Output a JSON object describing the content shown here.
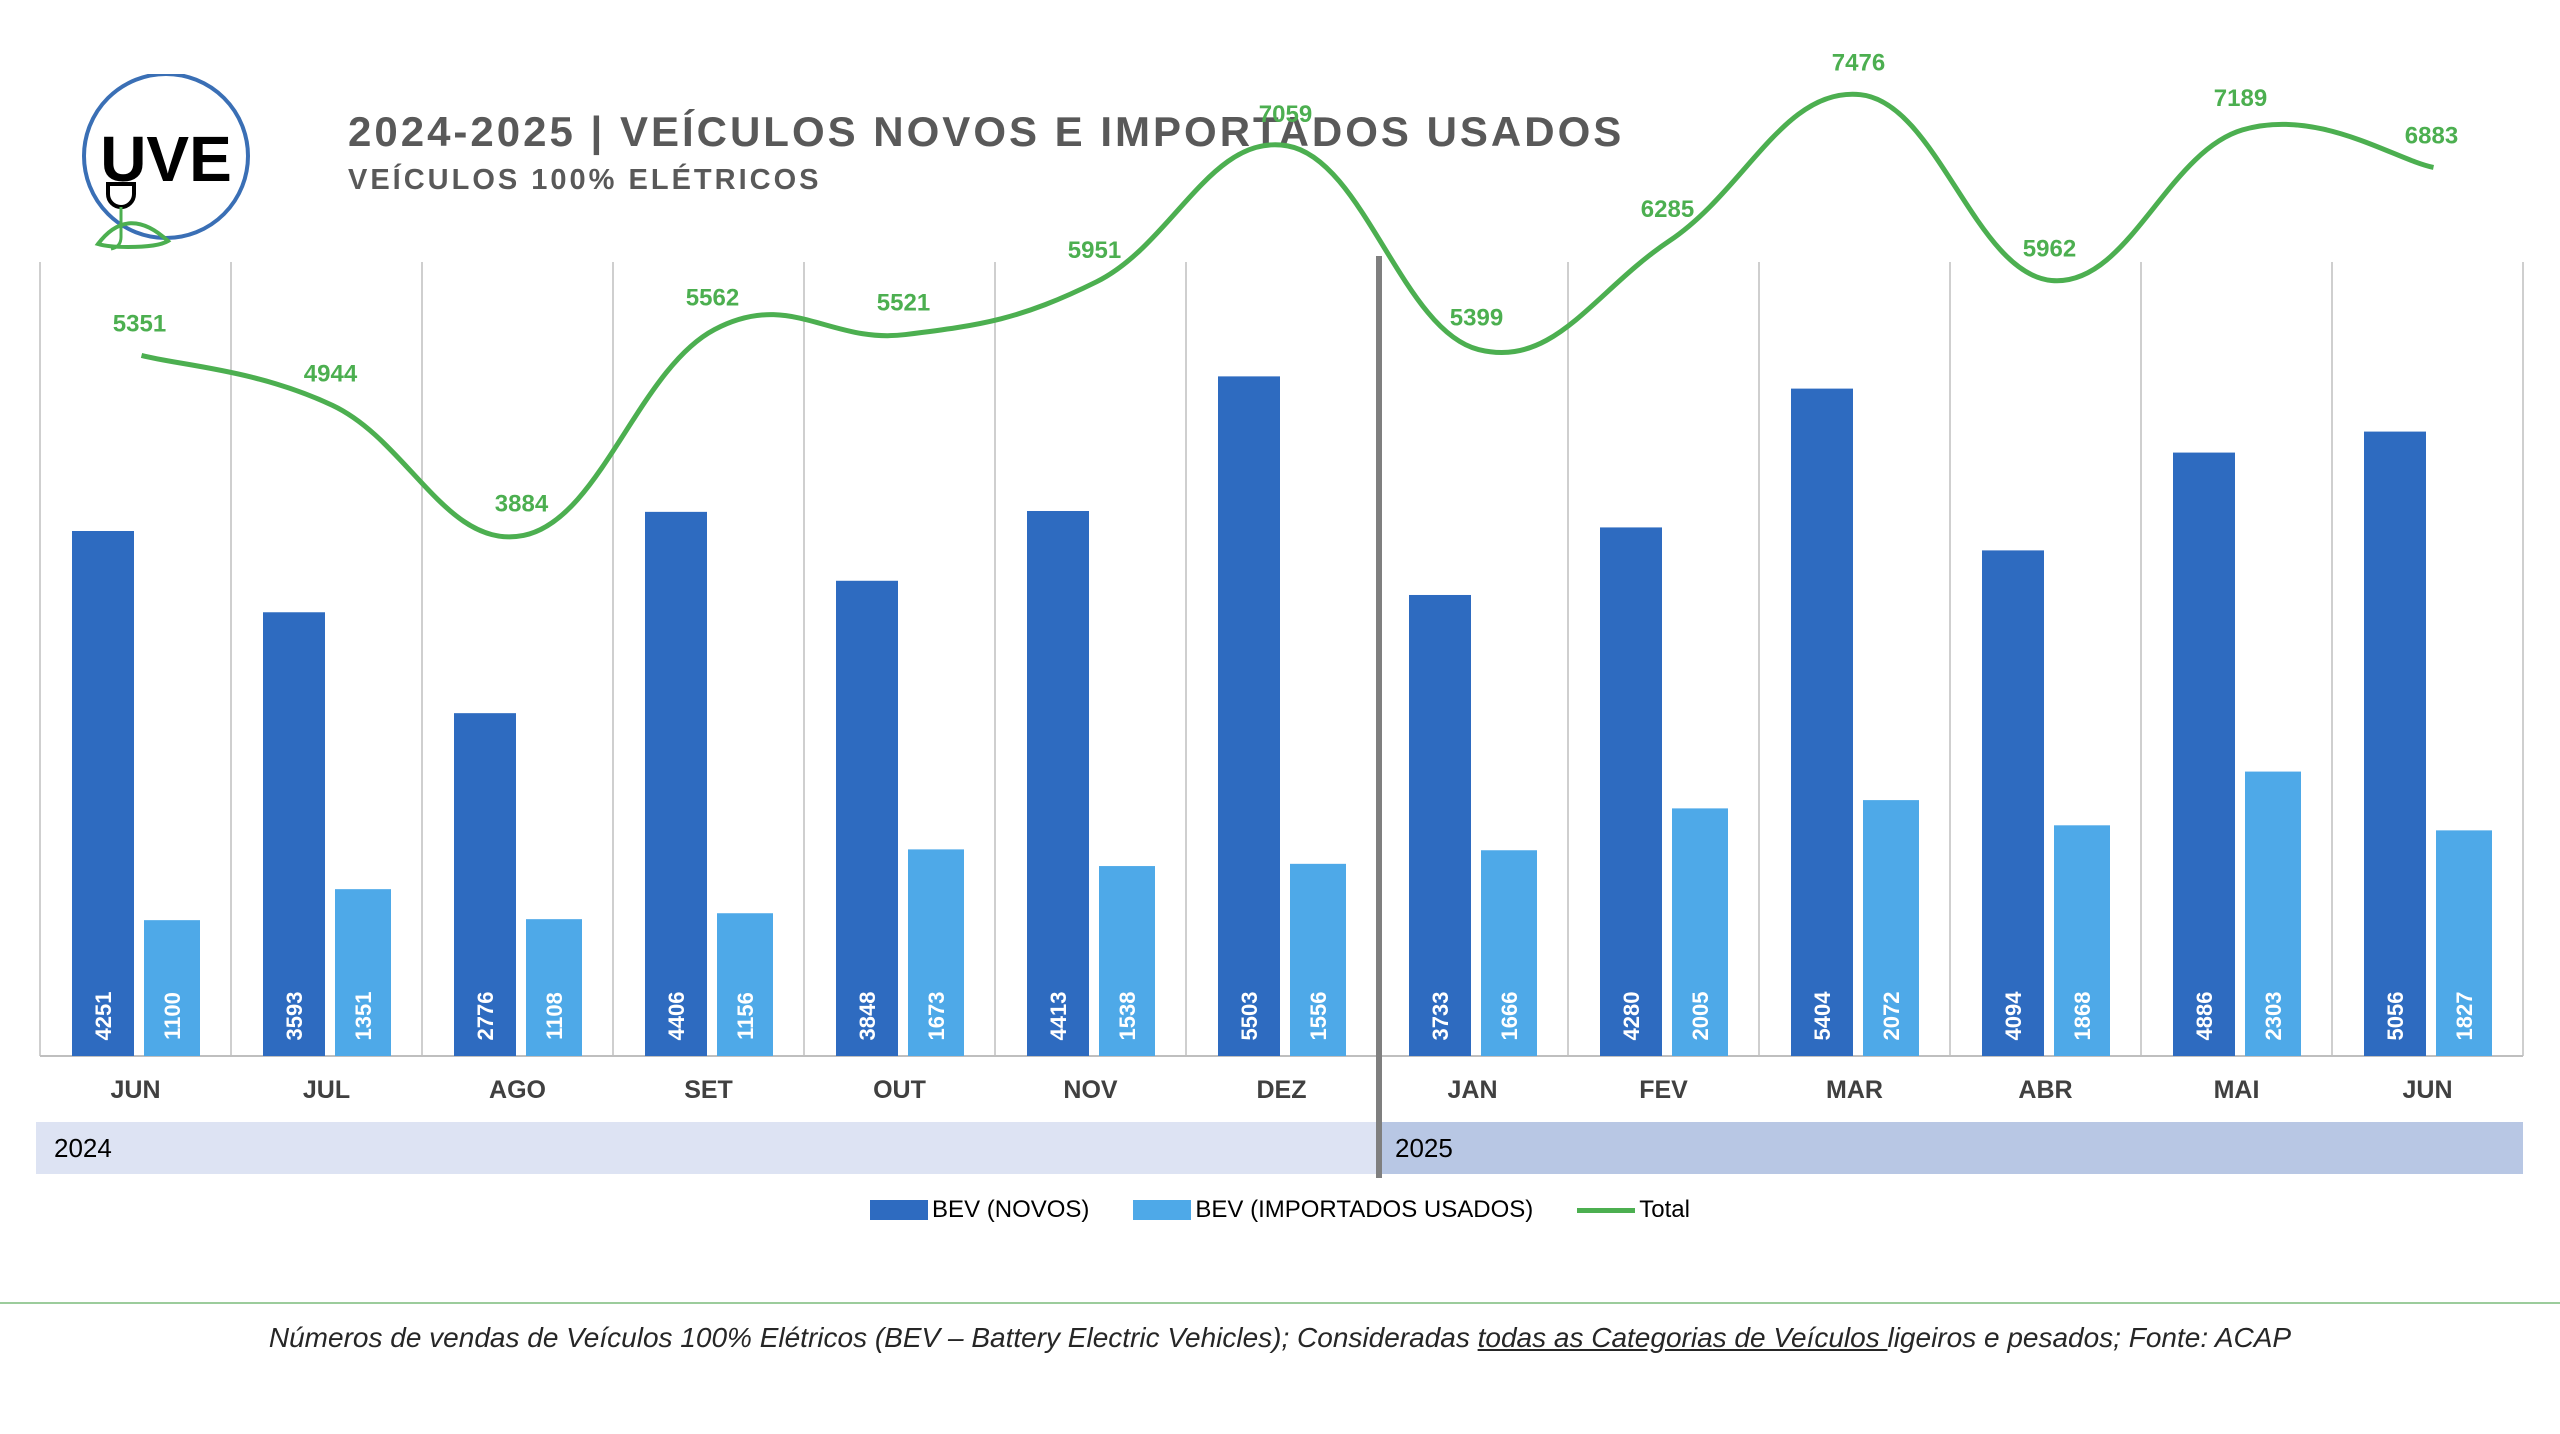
{
  "header": {
    "title": "2024-2025 | VEÍCULOS NOVOS E IMPORTADOS USADOS",
    "subtitle": "VEÍCULOS 100% ELÉTRICOS",
    "logo_text": "UVE"
  },
  "colors": {
    "bev_novos": "#2e6bc0",
    "bev_usados": "#4ea9e8",
    "total": "#4caf50",
    "year_2024_band": "#dde3f3",
    "year_2025_band": "#b8c7e4"
  },
  "chart_data": {
    "type": "bar",
    "categories": [
      "JUN",
      "JUL",
      "AGO",
      "SET",
      "OUT",
      "NOV",
      "DEZ",
      "JAN",
      "FEV",
      "MAR",
      "ABR",
      "MAI",
      "JUN"
    ],
    "years": [
      {
        "label": "2024",
        "span": 7
      },
      {
        "label": "2025",
        "span": 6
      }
    ],
    "series": [
      {
        "name": "BEV (NOVOS)",
        "type": "bar",
        "values": [
          4251,
          3593,
          2776,
          4406,
          3848,
          4413,
          5503,
          3733,
          4280,
          5404,
          4094,
          4886,
          5056
        ]
      },
      {
        "name": "BEV (IMPORTADOS USADOS)",
        "type": "bar",
        "values": [
          1100,
          1351,
          1108,
          1156,
          1673,
          1538,
          1556,
          1666,
          2005,
          2072,
          1868,
          2303,
          1827
        ]
      },
      {
        "name": "Total",
        "type": "line",
        "values": [
          5351,
          4944,
          3884,
          5562,
          5521,
          5951,
          7059,
          5399,
          6285,
          7476,
          5962,
          7189,
          6883
        ]
      }
    ],
    "ylim": [
      0,
      8000
    ],
    "legend_position": "bottom",
    "grid": "vertical"
  },
  "legend": {
    "novos": "BEV (NOVOS)",
    "usados": "BEV (IMPORTADOS USADOS)",
    "total": "Total"
  },
  "footnote": {
    "part1": "Números de vendas de Veículos 100% Elétricos (BEV – Battery Electric Vehicles); Consideradas ",
    "underlined": "todas as Categorias de Veículos ",
    "part2": "ligeiros e pesados; Fonte: ACAP"
  }
}
